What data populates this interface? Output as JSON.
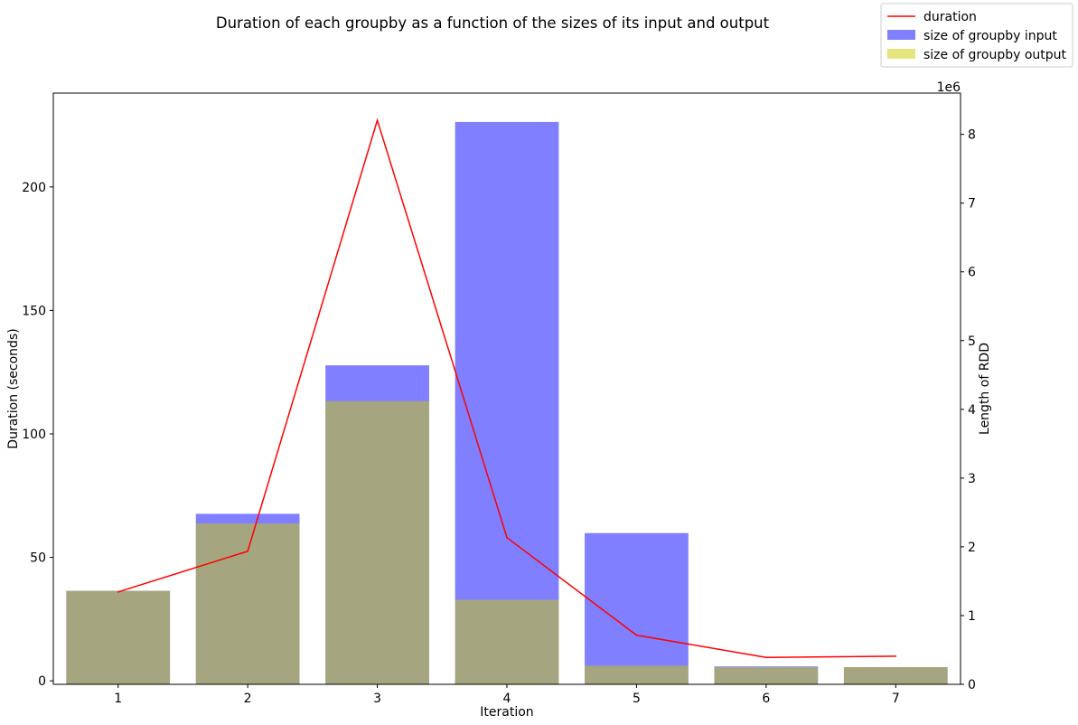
{
  "chart_data": {
    "type": "bar",
    "title": "Duration of each groupby as a function of the sizes of its input and output",
    "xlabel": "Iteration",
    "ylabel_left": "Duration (seconds)",
    "ylabel_right": "Length of RDD",
    "right_axis_offset_label": "1e6",
    "categories": [
      "1",
      "2",
      "3",
      "4",
      "5",
      "6",
      "7"
    ],
    "left_axis": {
      "ylim": [
        -1.4,
        238
      ],
      "ticks": [
        0,
        50,
        100,
        150,
        200
      ]
    },
    "right_axis": {
      "ylim": [
        0,
        8.6
      ],
      "ticks": [
        0,
        1,
        2,
        3,
        4,
        5,
        6,
        7,
        8
      ],
      "unit_multiplier": 1000000
    },
    "series": [
      {
        "name": "duration",
        "kind": "line",
        "axis": "left",
        "color": "#ff0000",
        "values": [
          36,
          52.5,
          227,
          58,
          18.5,
          9.5,
          10
        ]
      },
      {
        "name": "size of groupby input",
        "kind": "bar",
        "axis": "right",
        "color": "#0000ff",
        "alpha": 0.5,
        "values": [
          1.36,
          2.48,
          4.64,
          8.18,
          2.2,
          0.26,
          0.25
        ]
      },
      {
        "name": "size of groupby output",
        "kind": "bar",
        "axis": "right",
        "color": "#cccc00",
        "alpha": 0.5,
        "values": [
          1.36,
          2.34,
          4.12,
          1.23,
          0.27,
          0.25,
          0.25
        ]
      }
    ],
    "legend_position": "upper-right",
    "grid": false
  }
}
